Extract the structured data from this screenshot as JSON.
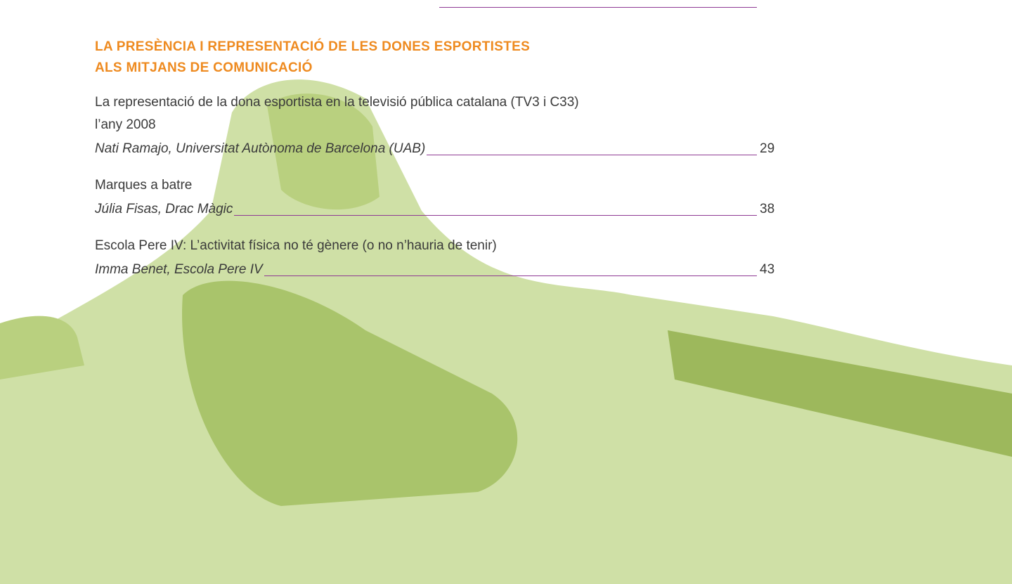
{
  "section": {
    "title": [
      "LA PRESÈNCIA I REPRESENTACIÓ DE LES DONES ESPORTISTES",
      "ALS MITJANS DE COMUNICACIÓ"
    ]
  },
  "entries": [
    {
      "title": [
        "La representació de la dona esportista en la televisió pública catalana (TV3 i C33)",
        "l’any 2008"
      ],
      "author": "Nati Ramajo, Universitat Autònoma de Barcelona (UAB)",
      "page": 29
    },
    {
      "title": [
        "Marques a batre"
      ],
      "author": "Júlia Fisas, Drac Màgic",
      "page": 38
    },
    {
      "title": [
        "Escola Pere IV: L’activitat física no té gènere (o no n’hauria de tenir)"
      ],
      "author": "Imma Benet, Escola Pere IV",
      "page": 43
    }
  ]
}
